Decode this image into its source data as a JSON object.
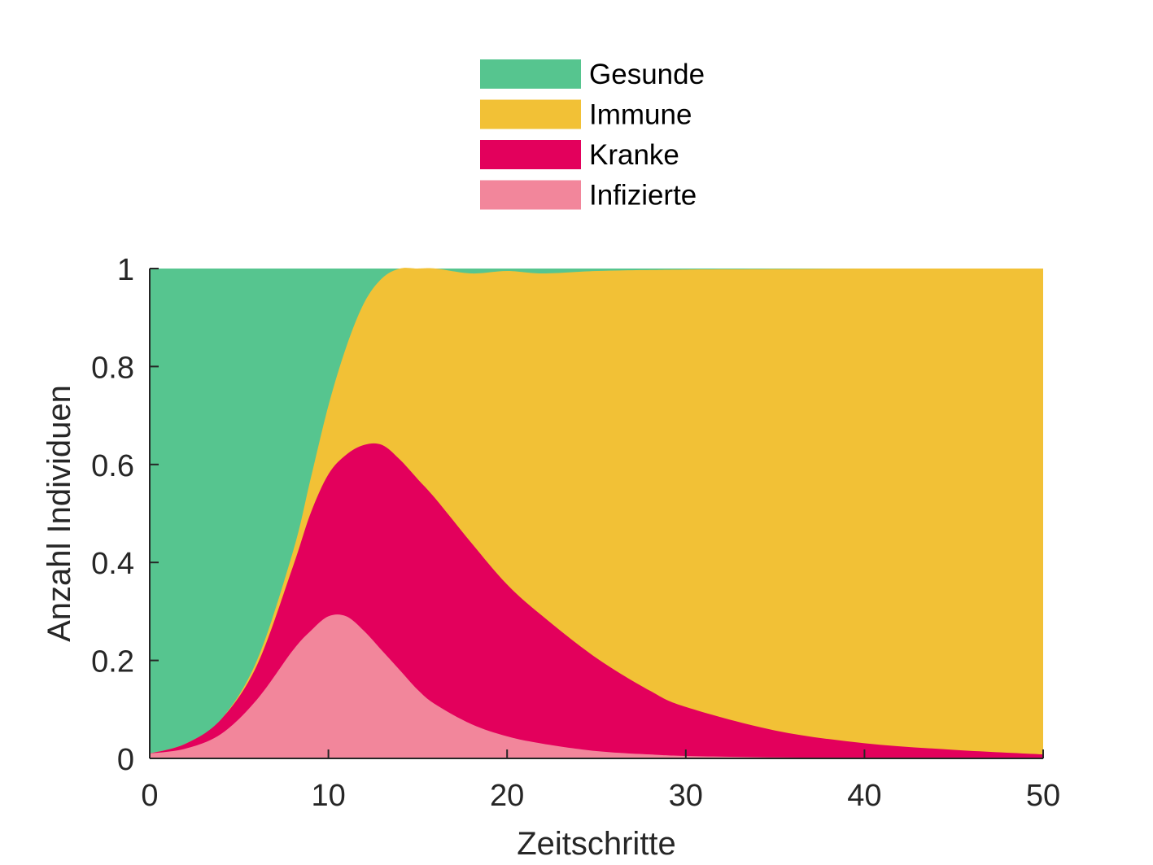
{
  "chart_data": {
    "type": "area",
    "stacked": true,
    "xlabel": "Zeitschritte",
    "ylabel": "Anzahl Individuen",
    "xlim": [
      0,
      50
    ],
    "ylim": [
      0,
      1
    ],
    "xticks": [
      "0",
      "10",
      "20",
      "30",
      "40",
      "50"
    ],
    "yticks": [
      "0",
      "0.2",
      "0.4",
      "0.6",
      "0.8",
      "1"
    ],
    "grid": false,
    "legend_position": "top-center",
    "legend": [
      "Gesunde",
      "Immune",
      "Kranke",
      "Infizierte"
    ],
    "x": [
      0,
      2,
      4,
      6,
      8,
      9,
      10,
      11,
      12,
      13,
      14,
      15,
      16,
      18,
      20,
      22,
      25,
      28,
      30,
      35,
      40,
      45,
      50
    ],
    "series": [
      {
        "name": "Infizierte",
        "color": "#F2869B",
        "values": [
          0.01,
          0.02,
          0.05,
          0.12,
          0.22,
          0.26,
          0.29,
          0.29,
          0.26,
          0.22,
          0.18,
          0.14,
          0.11,
          0.07,
          0.045,
          0.03,
          0.015,
          0.008,
          0.005,
          0.002,
          0.001,
          0.0005,
          0.0002
        ]
      },
      {
        "name": "Kranke",
        "color": "#E3005C",
        "values": [
          0.0,
          0.01,
          0.03,
          0.07,
          0.17,
          0.24,
          0.29,
          0.33,
          0.38,
          0.42,
          0.43,
          0.43,
          0.42,
          0.37,
          0.31,
          0.26,
          0.19,
          0.13,
          0.1,
          0.055,
          0.03,
          0.017,
          0.008
        ]
      },
      {
        "name": "Immune",
        "color": "#F2C136",
        "values": [
          0.0,
          0.0,
          0.0,
          0.01,
          0.03,
          0.07,
          0.14,
          0.22,
          0.29,
          0.34,
          0.39,
          0.43,
          0.47,
          0.55,
          0.64,
          0.7,
          0.79,
          0.859,
          0.893,
          0.942,
          0.969,
          0.9825,
          0.9918
        ]
      },
      {
        "name": "Gesunde",
        "color": "#56C58F",
        "values": [
          0.99,
          0.97,
          0.92,
          0.8,
          0.58,
          0.43,
          0.28,
          0.16,
          0.07,
          0.02,
          0.0,
          0.0,
          0.0,
          0.01,
          0.005,
          0.01,
          0.005,
          0.003,
          0.002,
          0.001,
          0.0,
          0.0,
          0.0
        ]
      }
    ]
  }
}
